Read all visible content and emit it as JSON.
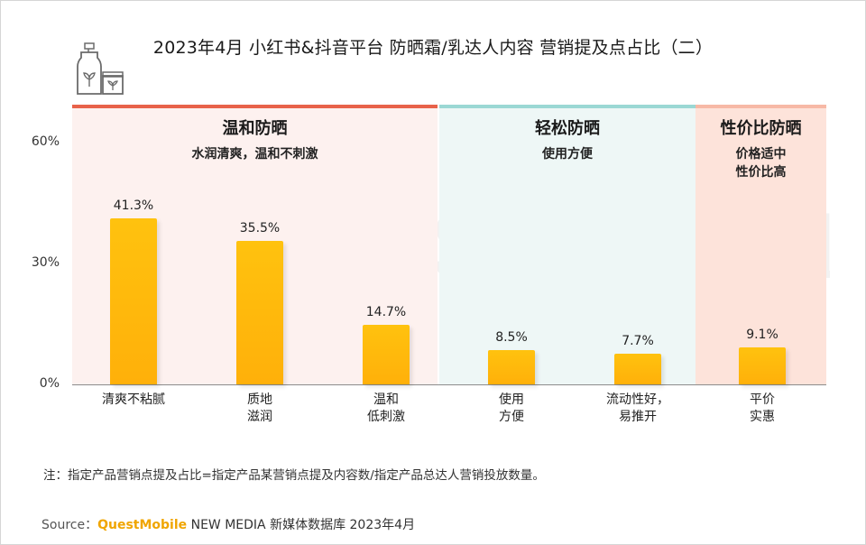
{
  "title": "2023年4月 小红书&抖音平台 防晒霜/乳达人内容 营销提及点占比（二）",
  "watermark": "QUEST MOBILE",
  "sections": [
    {
      "title": "温和防晒",
      "subtitle": "水润清爽，温和不刺激",
      "band_color": "#e8624a",
      "bg_color": "#fdf1ef"
    },
    {
      "title": "轻松防晒",
      "subtitle": "使用方便",
      "band_color": "#9bd8d4",
      "bg_color": "#eef7f6"
    },
    {
      "title": "性价比防晒",
      "subtitle": "价格适中\n性价比高",
      "band_color": "#f7b9a6",
      "bg_color": "#fde3da"
    }
  ],
  "chart_data": {
    "type": "bar",
    "categories": [
      "清爽不粘腻",
      "质地\n滋润",
      "温和\n低刺激",
      "使用\n方便",
      "流动性好，\n易推开",
      "平价\n实惠"
    ],
    "values": [
      41.3,
      35.5,
      14.7,
      8.5,
      7.7,
      9.1
    ],
    "value_labels": [
      "41.3%",
      "35.5%",
      "14.7%",
      "8.5%",
      "7.7%",
      "9.1%"
    ],
    "yticks": [
      "0%",
      "30%",
      "60%"
    ],
    "ylim": [
      0,
      60
    ],
    "bar_color": "#ffc20e",
    "grid": false
  },
  "note": "注：指定产品营销点提及占比=指定产品某营销点提及内容数/指定产品总达人营销投放数量。",
  "source": {
    "prefix": "Source：",
    "brand": "QuestMobile",
    "rest": " NEW MEDIA 新媒体数据库 2023年4月"
  }
}
